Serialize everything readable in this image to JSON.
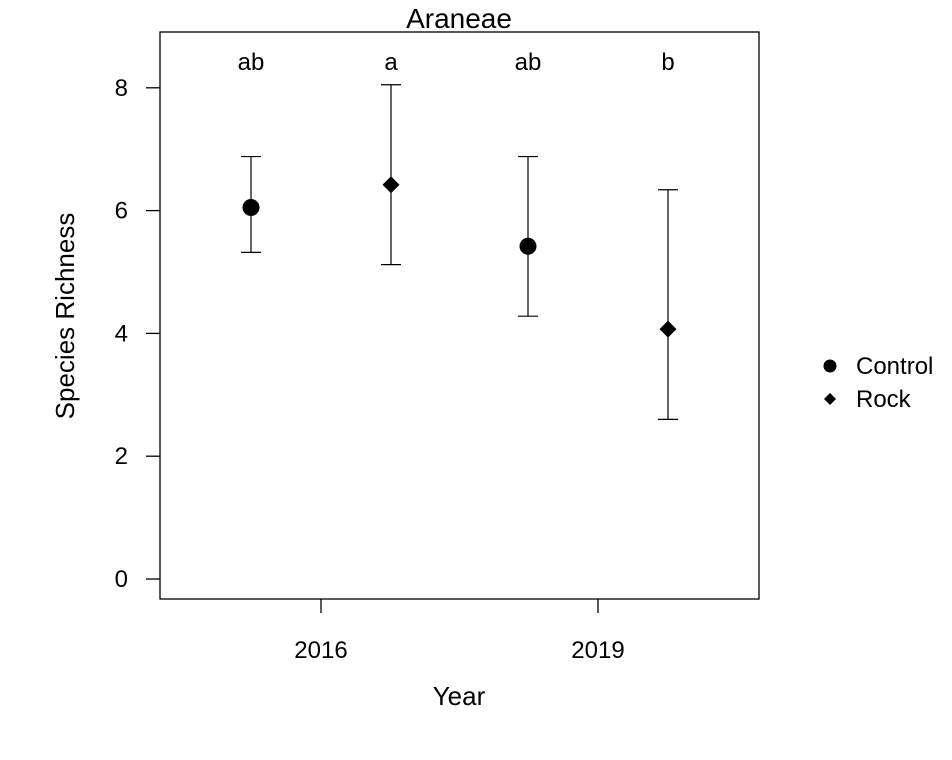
{
  "chart_data": {
    "type": "scatter",
    "title": "Araneae",
    "xlabel": "Year",
    "ylabel": "Species Richness",
    "categories": [
      "2016",
      "2019"
    ],
    "ylim": [
      0,
      8.8
    ],
    "yticks": [
      0,
      2,
      4,
      6,
      8
    ],
    "grid": false,
    "legend_position": "right",
    "series": [
      {
        "name": "Control",
        "marker": "circle",
        "color": "#000000",
        "points": [
          {
            "x": "2016",
            "y": 6.05,
            "lower": 5.32,
            "upper": 6.88,
            "letter": "ab"
          },
          {
            "x": "2019",
            "y": 5.42,
            "lower": 4.28,
            "upper": 6.88,
            "letter": "ab"
          }
        ]
      },
      {
        "name": "Rock",
        "marker": "diamond",
        "color": "#000000",
        "points": [
          {
            "x": "2016",
            "y": 6.42,
            "lower": 5.12,
            "upper": 8.05,
            "letter": "a"
          },
          {
            "x": "2019",
            "y": 4.07,
            "lower": 2.6,
            "upper": 6.34,
            "letter": "b"
          }
        ]
      }
    ]
  }
}
